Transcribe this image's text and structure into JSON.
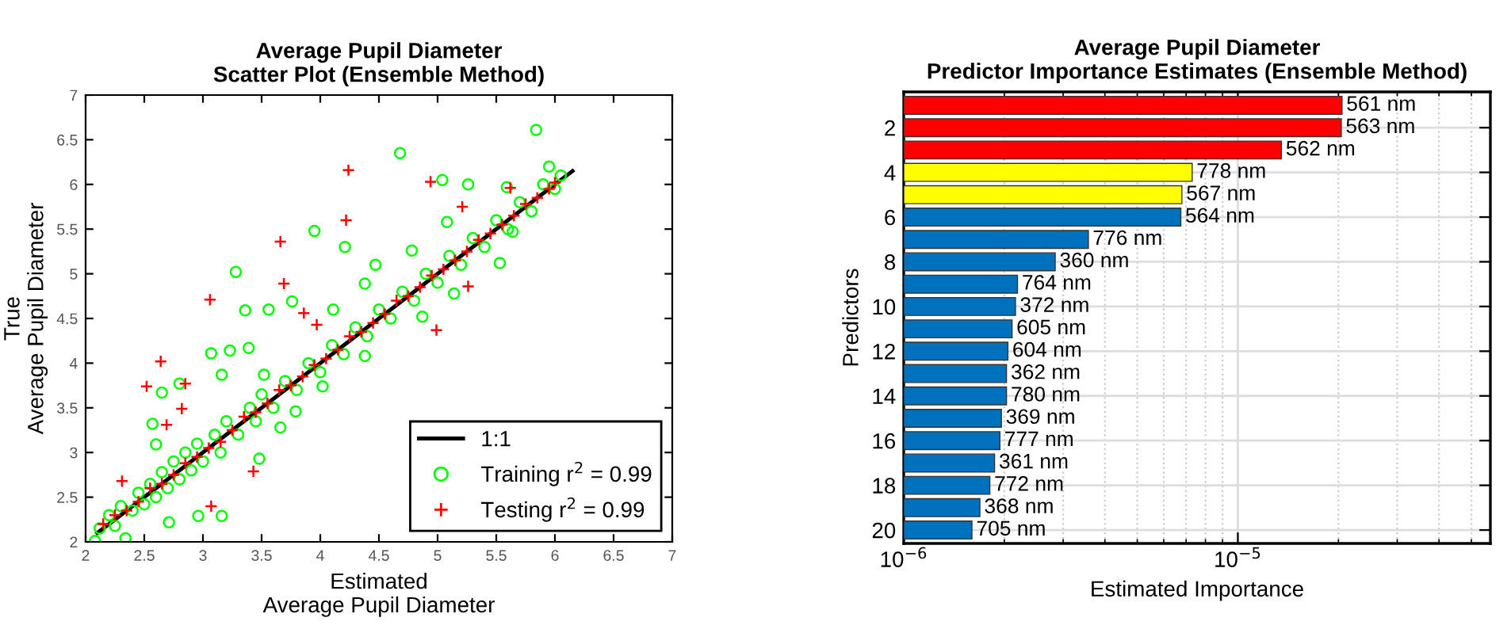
{
  "chart_data": [
    {
      "type": "scatter",
      "title": "Average Pupil Diameter\nScatter Plot (Ensemble Method)",
      "xlabel": "Estimated\nAverage Pupil Diameter",
      "ylabel": "True\nAverage Pupil Diameter",
      "xlim": [
        2,
        7
      ],
      "ylim": [
        2,
        7
      ],
      "xticks": [
        2,
        2.5,
        3,
        3.5,
        4,
        4.5,
        5,
        5.5,
        6,
        6.5,
        7
      ],
      "yticks": [
        2,
        2.5,
        3,
        3.5,
        4,
        4.5,
        5,
        5.5,
        6,
        6.5,
        7
      ],
      "grid": false,
      "legend": "bottom right",
      "series": [
        {
          "name": "1:1",
          "type": "line",
          "color": "#000000",
          "marker": "none",
          "line_style": "solid",
          "x": [
            2.1,
            6.15
          ],
          "values": [
            2.1,
            6.15
          ]
        },
        {
          "name": "Training r$^{2}$ = 0.99",
          "type": "scatter",
          "color": "#00ff00",
          "marker": "circle",
          "x": [
            5.84,
            4.68,
            5.04,
            3.95,
            4.21,
            3.28,
            3.76,
            3.36,
            3.56,
            3.07,
            3.23,
            3.39,
            3.16,
            3.52,
            2.65,
            2.57,
            2.6,
            2.8,
            3.16,
            2.96,
            3.79,
            3.48,
            3.66,
            4.02,
            4.38,
            4.87,
            5.14,
            5.53,
            5.64,
            2.71,
            2.34,
            2.08,
            4.11,
            4.38,
            4.47,
            4.78,
            5.08,
            5.26,
            5.59,
            5.95,
            2.12,
            2.2,
            2.25,
            2.3,
            2.4,
            2.45,
            2.5,
            2.55,
            2.6,
            2.65,
            2.7,
            2.75,
            2.8,
            2.85,
            2.9,
            2.95,
            3.0,
            3.1,
            3.15,
            3.2,
            3.3,
            3.4,
            3.45,
            3.5,
            3.6,
            3.7,
            3.8,
            3.9,
            4.0,
            4.1,
            4.2,
            4.3,
            4.4,
            4.5,
            4.6,
            4.7,
            4.8,
            4.9,
            5.0,
            5.1,
            5.2,
            5.3,
            5.4,
            5.5,
            5.6,
            5.7,
            5.8,
            5.9,
            6.0,
            6.05
          ],
          "values": [
            6.61,
            6.35,
            6.05,
            5.48,
            5.3,
            5.02,
            4.69,
            4.59,
            4.6,
            4.11,
            4.14,
            4.17,
            3.87,
            3.87,
            3.67,
            3.32,
            3.09,
            3.77,
            2.29,
            2.29,
            3.46,
            2.93,
            3.28,
            3.74,
            4.08,
            4.52,
            4.78,
            5.12,
            5.47,
            2.22,
            2.04,
            2.01,
            4.6,
            4.89,
            5.1,
            5.26,
            5.58,
            6.0,
            5.97,
            6.2,
            2.15,
            2.3,
            2.18,
            2.4,
            2.35,
            2.55,
            2.42,
            2.65,
            2.5,
            2.78,
            2.6,
            2.9,
            2.7,
            3.0,
            2.8,
            3.1,
            2.9,
            3.2,
            3.0,
            3.35,
            3.2,
            3.5,
            3.35,
            3.65,
            3.5,
            3.8,
            3.7,
            4.0,
            3.9,
            4.2,
            4.1,
            4.4,
            4.3,
            4.6,
            4.5,
            4.8,
            4.7,
            5.0,
            4.9,
            5.2,
            5.1,
            5.4,
            5.3,
            5.6,
            5.5,
            5.8,
            5.7,
            6.0,
            5.95,
            6.1
          ]
        },
        {
          "name": "Testing r$^{2}$ = 0.99",
          "type": "scatter",
          "color": "#ff0000",
          "marker": "cross",
          "x": [
            4.24,
            4.22,
            3.66,
            3.69,
            3.06,
            3.86,
            2.64,
            2.52,
            2.85,
            2.82,
            2.69,
            2.31,
            3.43,
            3.07,
            4.94,
            5.21,
            5.62,
            5.26,
            4.99,
            3.97,
            2.15,
            2.25,
            2.35,
            2.45,
            2.55,
            2.65,
            2.75,
            2.85,
            2.95,
            3.05,
            3.15,
            3.25,
            3.35,
            3.45,
            3.55,
            3.65,
            3.75,
            3.85,
            3.95,
            4.05,
            4.15,
            4.25,
            4.35,
            4.45,
            4.55,
            4.65,
            4.75,
            4.85,
            4.95,
            5.05,
            5.15,
            5.25,
            5.35,
            5.45,
            5.55,
            5.65,
            5.75,
            5.85,
            5.95,
            6.0
          ],
          "values": [
            6.16,
            5.6,
            5.36,
            4.89,
            4.71,
            4.56,
            4.02,
            3.74,
            3.77,
            3.49,
            3.31,
            2.68,
            2.79,
            2.4,
            6.03,
            5.75,
            5.96,
            4.86,
            4.37,
            4.43,
            2.2,
            2.3,
            2.35,
            2.45,
            2.6,
            2.65,
            2.75,
            2.88,
            2.95,
            3.05,
            3.12,
            3.25,
            3.4,
            3.45,
            3.55,
            3.7,
            3.75,
            3.85,
            3.98,
            4.05,
            4.15,
            4.3,
            4.35,
            4.45,
            4.55,
            4.7,
            4.75,
            4.85,
            4.98,
            5.05,
            5.15,
            5.25,
            5.38,
            5.45,
            5.55,
            5.65,
            5.78,
            5.85,
            5.95,
            6.02
          ]
        }
      ]
    },
    {
      "type": "bar",
      "orientation": "horizontal",
      "log": "x",
      "title": "Average Pupil Diameter\nPredictor Importance Estimates (Ensemble Method)",
      "xlabel": "Estimated Importance",
      "ylabel": "Predictors",
      "categories": [
        null,
        "2",
        null,
        "4",
        null,
        "6",
        null,
        "8",
        null,
        "10",
        null,
        "12",
        null,
        "14",
        null,
        "16",
        null,
        "18",
        null,
        "20"
      ],
      "values": [
        2.05e-05,
        2.04e-05,
        1.35e-05,
        7.3e-06,
        6.8e-06,
        6.75e-06,
        3.57e-06,
        2.84e-06,
        2.19e-06,
        2.16e-06,
        2.11e-06,
        2.05e-06,
        2.03e-06,
        2.03e-06,
        1.96e-06,
        1.94e-06,
        1.87e-06,
        1.81e-06,
        1.69e-06,
        1.6e-06
      ],
      "colors": [
        "#ff0000",
        "#ff0000",
        "#ff0000",
        "#ffff00",
        "#ffff00",
        "#0072bd",
        "#0072bd",
        "#0072bd",
        "#0072bd",
        "#0072bd",
        "#0072bd",
        "#0072bd",
        "#0072bd",
        "#0072bd",
        "#0072bd",
        "#0072bd",
        "#0072bd",
        "#0072bd",
        "#0072bd",
        "#0072bd"
      ],
      "annotations": [
        "561 nm",
        "563 nm",
        "562 nm",
        "778 nm",
        "567 nm",
        "564 nm",
        "776 nm",
        "360 nm",
        "764 nm",
        "372 nm",
        "605 nm",
        "604 nm",
        "362 nm",
        "780 nm",
        "369 nm",
        "777 nm",
        "361 nm",
        "772 nm",
        "368 nm",
        "705 nm"
      ],
      "xlim": [
        1e-06,
        5.7e-05
      ],
      "xticks": [
        {
          "value": 1e-06,
          "label": "10$^{−6}$"
        },
        {
          "value": 1e-05,
          "label": "10$^{−5}$"
        }
      ],
      "grid": true
    }
  ]
}
